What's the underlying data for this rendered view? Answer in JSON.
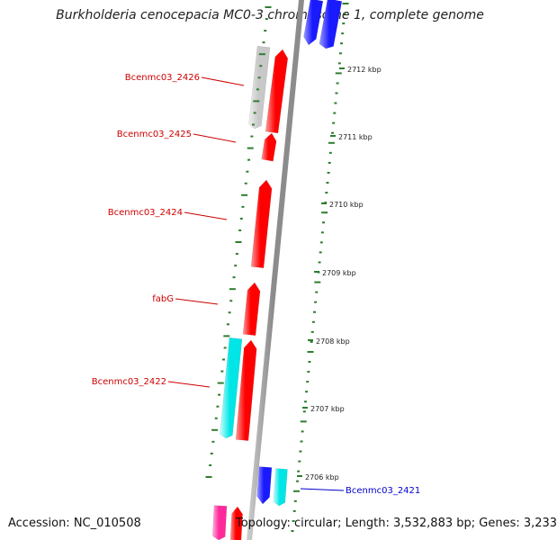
{
  "title": "Burkholderia cenocepacia MC0-3 chromosome 1, complete genome",
  "accession": "Accession: NC_010508",
  "topology": "Topology: circular; Length: 3,532,883 bp; Genes: 3,233",
  "colors": {
    "backbone": "#8c8c8c",
    "ticks": "#2e7d2e",
    "gene_red": "#ff0000",
    "gene_gray": "#c8c8c8",
    "gene_cyan": "#00e5e5",
    "gene_blue": "#1a1aff",
    "gene_pink": "#ff2a9a",
    "label_red": "#cc0000",
    "label_blue": "#0000cc"
  },
  "scale_labels": [
    "2712 kbp",
    "2711 kbp",
    "2710 kbp",
    "2709 kbp",
    "2708 kbp",
    "2707 kbp",
    "2706 kbp"
  ],
  "gene_labels": [
    {
      "text": "Bcenmc03_2426",
      "color": "label_red"
    },
    {
      "text": "Bcenmc03_2425",
      "color": "label_red"
    },
    {
      "text": "Bcenmc03_2424",
      "color": "label_red"
    },
    {
      "text": "fabG",
      "color": "label_red"
    },
    {
      "text": "Bcenmc03_2422",
      "color": "label_red"
    },
    {
      "text": "Bcenmc03_2421",
      "color": "label_blue"
    }
  ]
}
